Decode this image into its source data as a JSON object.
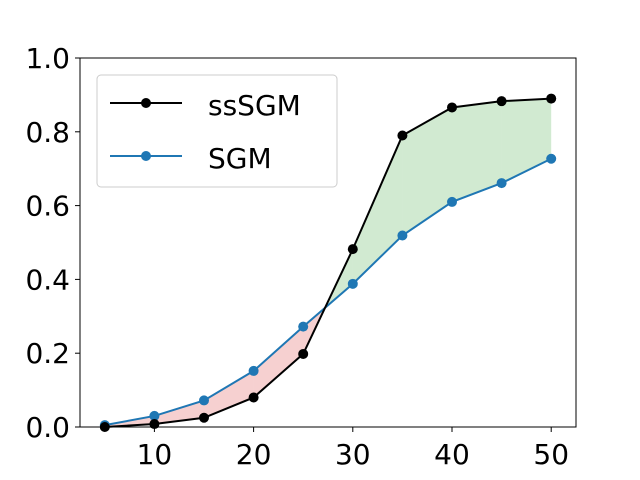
{
  "chart_data": {
    "type": "line",
    "x": [
      5,
      10,
      15,
      20,
      25,
      30,
      35,
      40,
      45,
      50
    ],
    "series": [
      {
        "name": "ssSGM",
        "color": "#000000",
        "values": [
          0.0,
          0.008,
          0.025,
          0.08,
          0.198,
          0.482,
          0.79,
          0.866,
          0.883,
          0.89
        ]
      },
      {
        "name": "SGM",
        "color": "#1f77b4",
        "values": [
          0.005,
          0.03,
          0.072,
          0.152,
          0.272,
          0.388,
          0.519,
          0.61,
          0.661,
          0.727
        ]
      }
    ],
    "fill_between": {
      "gain_color": "#2ca02c",
      "loss_color": "#d62728",
      "alpha": 0.22
    },
    "xlim": [
      2.5,
      52.5
    ],
    "ylim": [
      0.0,
      1.0
    ],
    "xticks": [
      10,
      20,
      30,
      40,
      50
    ],
    "yticks": [
      0.0,
      0.2,
      0.4,
      0.6,
      0.8,
      1.0
    ],
    "xtick_labels": [
      "10",
      "20",
      "30",
      "40",
      "50"
    ],
    "ytick_labels": [
      "0.0",
      "0.2",
      "0.4",
      "0.6",
      "0.8",
      "1.0"
    ],
    "legend": {
      "position": "upper-left",
      "labels": [
        "ssSGM",
        "SGM"
      ]
    },
    "grid": false
  }
}
